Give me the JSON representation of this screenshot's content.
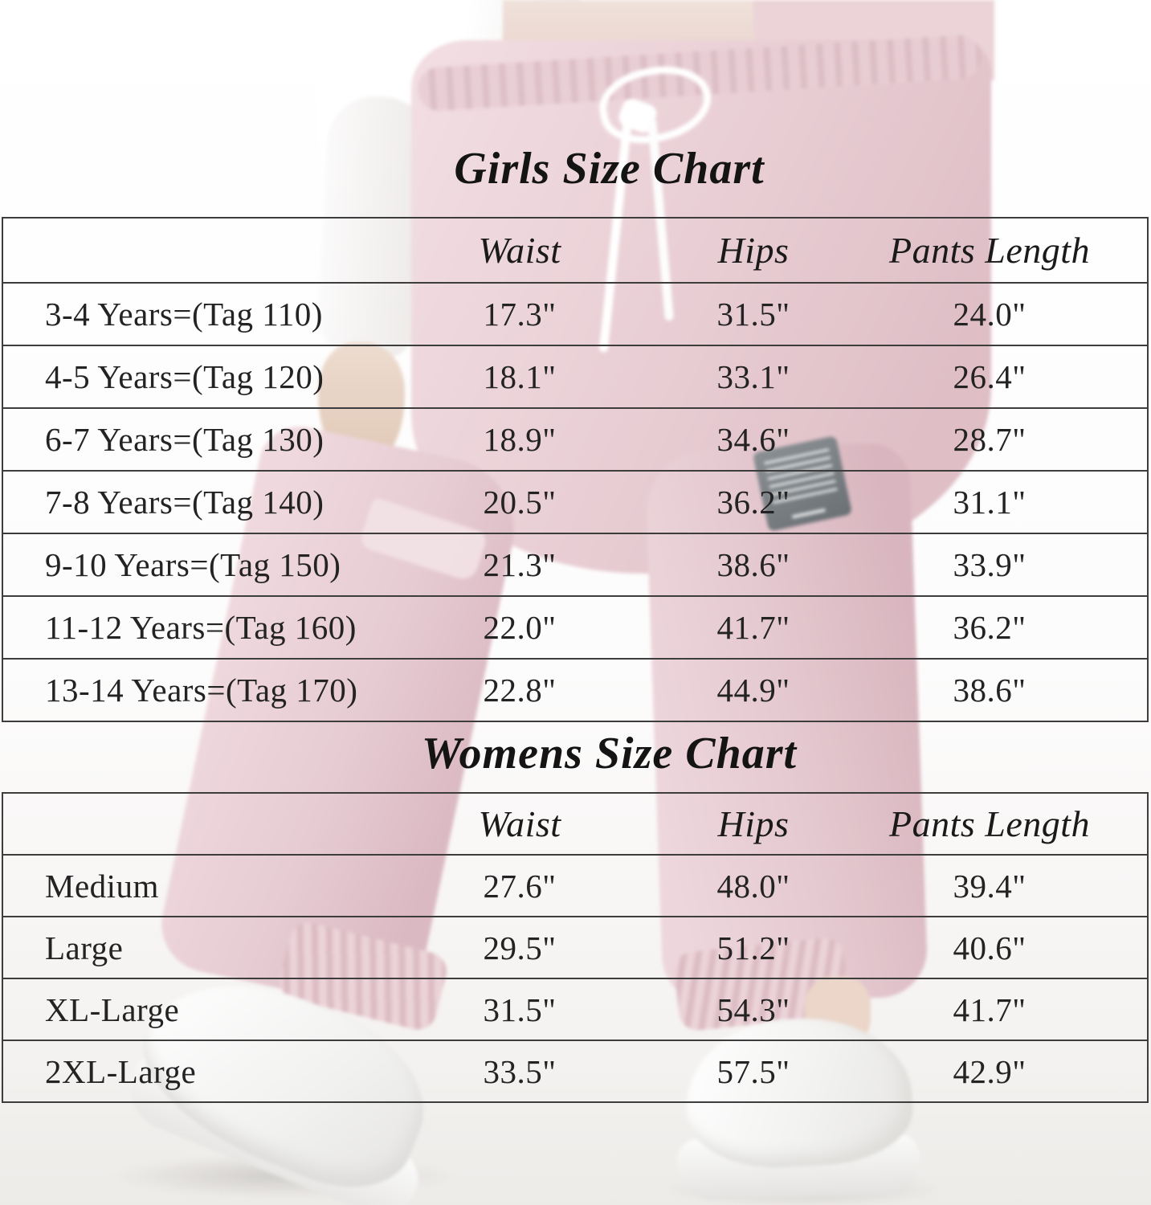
{
  "colors": {
    "line": "#3d3d3d",
    "text": "#232323",
    "title": "#141414",
    "pants_pink": "#e7cbd2",
    "patch_gray": "#6e7477",
    "background": "#ffffff"
  },
  "girls_chart": {
    "title": "Girls Size Chart",
    "headers": [
      "Waist",
      "Hips",
      "Pants Length"
    ],
    "rows": [
      {
        "label": "3-4 Years=(Tag 110)",
        "waist": "17.3\"",
        "hips": "31.5\"",
        "pants_length": "24.0\""
      },
      {
        "label": "4-5 Years=(Tag 120)",
        "waist": "18.1\"",
        "hips": "33.1\"",
        "pants_length": "26.4\""
      },
      {
        "label": "6-7 Years=(Tag 130)",
        "waist": "18.9\"",
        "hips": "34.6\"",
        "pants_length": "28.7\""
      },
      {
        "label": "7-8 Years=(Tag 140)",
        "waist": "20.5\"",
        "hips": "36.2\"",
        "pants_length": "31.1\""
      },
      {
        "label": "9-10 Years=(Tag 150)",
        "waist": "21.3\"",
        "hips": "38.6\"",
        "pants_length": "33.9\""
      },
      {
        "label": "11-12 Years=(Tag 160)",
        "waist": "22.0\"",
        "hips": "41.7\"",
        "pants_length": "36.2\""
      },
      {
        "label": "13-14 Years=(Tag 170)",
        "waist": "22.8\"",
        "hips": "44.9\"",
        "pants_length": "38.6\""
      }
    ]
  },
  "womens_chart": {
    "title": "Womens Size Chart",
    "headers": [
      "Waist",
      "Hips",
      "Pants Length"
    ],
    "rows": [
      {
        "label": "Medium",
        "waist": "27.6\"",
        "hips": "48.0\"",
        "pants_length": "39.4\""
      },
      {
        "label": "Large",
        "waist": "29.5\"",
        "hips": "51.2\"",
        "pants_length": "40.6\""
      },
      {
        "label": "XL-Large",
        "waist": "31.5\"",
        "hips": "54.3\"",
        "pants_length": "41.7\""
      },
      {
        "label": "2XL-Large",
        "waist": "33.5\"",
        "hips": "57.5\"",
        "pants_length": "42.9\""
      }
    ]
  },
  "chart_data": [
    {
      "type": "table",
      "title": "Girls Size Chart",
      "columns": [
        "",
        "Waist",
        "Hips",
        "Pants Length"
      ],
      "rows": [
        [
          "3-4 Years=(Tag 110)",
          "17.3\"",
          "31.5\"",
          "24.0\""
        ],
        [
          "4-5 Years=(Tag 120)",
          "18.1\"",
          "33.1\"",
          "26.4\""
        ],
        [
          "6-7 Years=(Tag 130)",
          "18.9\"",
          "34.6\"",
          "28.7\""
        ],
        [
          "7-8 Years=(Tag 140)",
          "20.5\"",
          "36.2\"",
          "31.1\""
        ],
        [
          "9-10 Years=(Tag 150)",
          "21.3\"",
          "38.6\"",
          "33.9\""
        ],
        [
          "11-12 Years=(Tag 160)",
          "22.0\"",
          "41.7\"",
          "36.2\""
        ],
        [
          "13-14 Years=(Tag 170)",
          "22.8\"",
          "44.9\"",
          "38.6\""
        ]
      ]
    },
    {
      "type": "table",
      "title": "Womens Size Chart",
      "columns": [
        "",
        "Waist",
        "Hips",
        "Pants Length"
      ],
      "rows": [
        [
          "Medium",
          "27.6\"",
          "48.0\"",
          "39.4\""
        ],
        [
          "Large",
          "29.5\"",
          "51.2\"",
          "40.6\""
        ],
        [
          "XL-Large",
          "31.5\"",
          "54.3\"",
          "41.7\""
        ],
        [
          "2XL-Large",
          "33.5\"",
          "57.5\"",
          "42.9\""
        ]
      ]
    }
  ]
}
